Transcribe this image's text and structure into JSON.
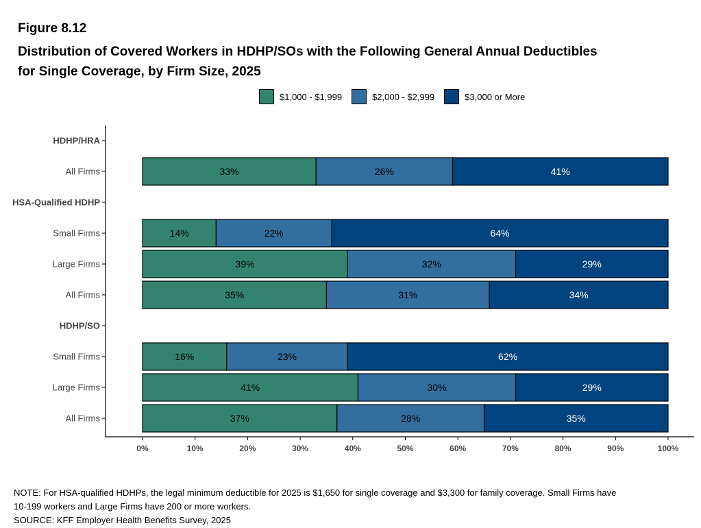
{
  "figure_label": "Figure 8.12",
  "title_line1": "Distribution of Covered Workers in HDHP/SOs with the Following General Annual Deductibles",
  "title_line2": "for Single Coverage, by Firm Size, 2025",
  "chart_data": {
    "type": "bar",
    "orientation": "horizontal",
    "stacked": true,
    "xlim": [
      0,
      100
    ],
    "x_ticks": [
      "0%",
      "10%",
      "20%",
      "30%",
      "40%",
      "50%",
      "60%",
      "70%",
      "80%",
      "90%",
      "100%"
    ],
    "legend": {
      "placement": "top"
    },
    "series": [
      {
        "name": "$1,000 - $1,999",
        "color": "#33836e",
        "label_color": "#000000"
      },
      {
        "name": "$2,000 - $2,999",
        "color": "#326e9e",
        "label_color": "#000000"
      },
      {
        "name": "$3,000 or More",
        "color": "#00447f",
        "label_color": "#ffffff"
      }
    ],
    "rows": [
      {
        "label": "HDHP/HRA",
        "header": true
      },
      {
        "label": "All Firms",
        "values": [
          33,
          26,
          41
        ],
        "labels": [
          "33%",
          "26%",
          "41%"
        ]
      },
      {
        "label": "HSA-Qualified HDHP",
        "header": true
      },
      {
        "label": "Small Firms",
        "values": [
          14,
          22,
          64
        ],
        "labels": [
          "14%",
          "22%",
          "64%"
        ]
      },
      {
        "label": "Large Firms",
        "values": [
          39,
          32,
          29
        ],
        "labels": [
          "39%",
          "32%",
          "29%"
        ]
      },
      {
        "label": "All Firms",
        "values": [
          35,
          31,
          34
        ],
        "labels": [
          "35%",
          "31%",
          "34%"
        ]
      },
      {
        "label": "HDHP/SO",
        "header": true
      },
      {
        "label": "Small Firms",
        "values": [
          16,
          23,
          62
        ],
        "labels": [
          "16%",
          "23%",
          "62%"
        ]
      },
      {
        "label": "Large Firms",
        "values": [
          41,
          30,
          29
        ],
        "labels": [
          "41%",
          "30%",
          "29%"
        ]
      },
      {
        "label": "All Firms",
        "values": [
          37,
          28,
          35
        ],
        "labels": [
          "37%",
          "28%",
          "35%"
        ]
      }
    ]
  },
  "notes": {
    "note_line1": "NOTE: For HSA-qualified HDHPs, the legal minimum deductible for 2025 is $1,650 for single coverage and $3,300 for family coverage. Small Firms have",
    "note_line2": "10-199 workers and Large Firms have 200 or more workers.",
    "source": "SOURCE: KFF Employer Health Benefits Survey, 2025"
  }
}
